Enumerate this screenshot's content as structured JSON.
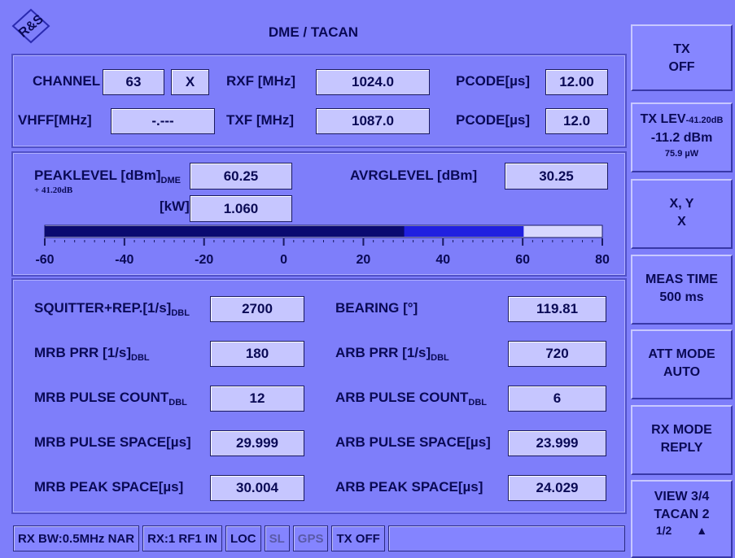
{
  "header": {
    "logo": "R&S",
    "title": "DME / TACAN"
  },
  "channel_panel": {
    "channel": {
      "label": "CHANNEL",
      "value": "63",
      "mode": "X"
    },
    "rxf": {
      "label": "RXF [MHz]",
      "value": "1024.0"
    },
    "pcode_rx": {
      "label": "PCODE[µs]",
      "value": "12.00"
    },
    "vhff": {
      "label": "VHFF[MHz]",
      "value": "-.---"
    },
    "txf": {
      "label": "TXF [MHz]",
      "value": "1087.0"
    },
    "pcode_tx": {
      "label": "PCODE[µs]",
      "value": "12.0"
    }
  },
  "level_panel": {
    "peak_level": {
      "label": "PEAKLEVEL [dBm]",
      "sub": "DME",
      "offset": "+ 41.20dB",
      "value": 60.25
    },
    "peak_power": {
      "label": "[kW]",
      "value": "1.060"
    },
    "avrg_level": {
      "label": "AVRGLEVEL [dBm]",
      "value": 30.25
    },
    "bar": {
      "xlim": [
        -60,
        80
      ],
      "xticks": [
        -60,
        -40,
        -20,
        0,
        20,
        40,
        60,
        80
      ]
    }
  },
  "measurements": {
    "rows": [
      [
        {
          "label": "SQUITTER+REP.[1/s]",
          "sub": "DBL",
          "value": "2700"
        },
        {
          "label": "BEARING [°]",
          "value": "119.81"
        }
      ],
      [
        {
          "label": "MRB PRR [1/s]",
          "sub": "DBL",
          "value": "180"
        },
        {
          "label": "ARB PRR [1/s]",
          "sub": "DBL",
          "value": "720"
        }
      ],
      [
        {
          "label": "MRB PULSE COUNT",
          "sub": "DBL",
          "value": "12"
        },
        {
          "label": "ARB PULSE COUNT",
          "sub": "DBL",
          "value": "6"
        }
      ],
      [
        {
          "label": "MRB PULSE SPACE[µs]",
          "value": "29.999"
        },
        {
          "label": "ARB PULSE SPACE[µs]",
          "value": "23.999"
        }
      ],
      [
        {
          "label": "MRB PEAK SPACE[µs]",
          "value": "30.004"
        },
        {
          "label": "ARB PEAK SPACE[µs]",
          "value": "24.029"
        }
      ]
    ]
  },
  "status_bar": [
    {
      "text": "RX BW:0.5MHz NAR",
      "active": true
    },
    {
      "text": "RX:1 RF1 IN",
      "active": true
    },
    {
      "text": "LOC",
      "active": true
    },
    {
      "text": "SL",
      "active": false
    },
    {
      "text": "GPS",
      "active": false
    },
    {
      "text": "TX OFF",
      "active": true
    }
  ],
  "softkeys": [
    {
      "title": "TX",
      "value": "OFF"
    },
    {
      "title": "TX LEV",
      "title_note": "-41.20dB",
      "value": "-11.2 dBm",
      "note": "75.9 µW"
    },
    {
      "title": "X, Y",
      "value": "X"
    },
    {
      "title": "MEAS TIME",
      "value": "500 ms"
    },
    {
      "title": "ATT MODE",
      "value": "AUTO"
    },
    {
      "title": "RX MODE",
      "value": "REPLY"
    },
    {
      "title": "VIEW 3/4",
      "value": "TACAN 2",
      "note": "1/2",
      "arrow": "▲"
    }
  ]
}
